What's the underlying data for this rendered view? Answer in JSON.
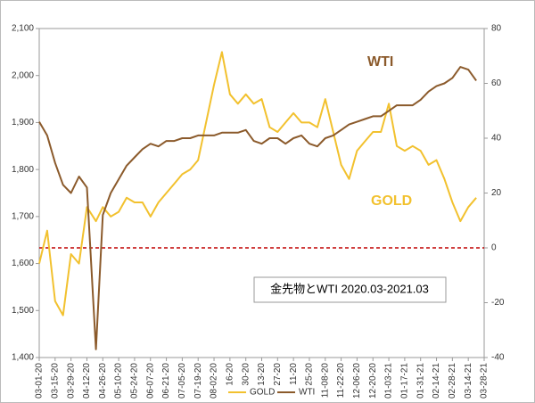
{
  "chart_data": {
    "type": "line",
    "annotations": [
      "WTI",
      "GOLD",
      "金先物とWTI 2020.03-2021.03"
    ],
    "x": [
      "03-01-20",
      "03-08-20",
      "03-15-20",
      "03-22-20",
      "03-29-20",
      "04-05-20",
      "04-12-20",
      "04-20-20",
      "04-26-20",
      "05-03-20",
      "05-10-20",
      "05-17-20",
      "05-24-20",
      "05-31-20",
      "06-07-20",
      "06-14-20",
      "06-21-20",
      "06-28-20",
      "07-05-20",
      "07-12-20",
      "07-19-20",
      "07-26-20",
      "08-02-20",
      "08-09-20",
      "08-16-20",
      "08-23-20",
      "08-30-20",
      "09-06-20",
      "09-13-20",
      "09-20-20",
      "09-27-20",
      "10-04-20",
      "10-11-20",
      "10-18-20",
      "10-25-20",
      "11-01-20",
      "11-08-20",
      "11-15-20",
      "11-22-20",
      "11-29-20",
      "12-06-20",
      "12-13-20",
      "12-20-20",
      "12-27-20",
      "01-03-21",
      "01-10-21",
      "01-17-21",
      "01-24-21",
      "01-31-21",
      "02-07-21",
      "02-14-21",
      "02-21-21",
      "02-28-21",
      "03-07-21",
      "03-14-21",
      "03-21-21"
    ],
    "series": [
      {
        "name": "GOLD",
        "color": "#f2c12e",
        "values": [
          1600,
          1670,
          1520,
          1490,
          1620,
          1600,
          1720,
          1690,
          1720,
          1700,
          1710,
          1740,
          1730,
          1730,
          1700,
          1730,
          1750,
          1770,
          1790,
          1800,
          1820,
          1900,
          1980,
          2050,
          1960,
          1940,
          1960,
          1940,
          1950,
          1890,
          1880,
          1900,
          1920,
          1900,
          1900,
          1890,
          1950,
          1880,
          1810,
          1780,
          1840,
          1860,
          1880,
          1880,
          1940,
          1850,
          1840,
          1850,
          1840,
          1810,
          1820,
          1780,
          1730,
          1690,
          1720,
          1740
        ]
      },
      {
        "name": "WTI",
        "color": "#8b5a2b",
        "axis": "y2",
        "values": [
          46,
          41,
          31,
          23,
          20,
          26,
          22,
          -37,
          12,
          20,
          25,
          30,
          33,
          36,
          38,
          37,
          39,
          39,
          40,
          40,
          41,
          41,
          41,
          42,
          42,
          42,
          43,
          39,
          38,
          40,
          40,
          38,
          40,
          41,
          38,
          37,
          40,
          41,
          43,
          45,
          46,
          47,
          48,
          48,
          50,
          52,
          52,
          52,
          54,
          57,
          59,
          60,
          62,
          66,
          65,
          61
        ]
      }
    ],
    "xlim": [
      "03-01-20",
      "03-28-21"
    ],
    "xticks": [
      "03-01-20",
      "03-15-20",
      "03-29-20",
      "04-12-20",
      "04-26-20",
      "05-10-20",
      "05-24-20",
      "06-07-20",
      "06-21-20",
      "07-05-20",
      "07-19-20",
      "08-02-20",
      "08-16-20",
      "08-30-20",
      "09-13-20",
      "09-27-20",
      "10-11-20",
      "10-25-20",
      "11-08-20",
      "11-22-20",
      "12-06-20",
      "12-20-20",
      "01-03-21",
      "01-17-21",
      "01-31-21",
      "02-14-21",
      "02-28-21",
      "03-14-21",
      "03-28-21"
    ],
    "ylim": [
      1400,
      2100
    ],
    "yticks": [
      {
        "value": 1400,
        "label": "1,400"
      },
      {
        "value": 1500,
        "label": "1,500"
      },
      {
        "value": 1600,
        "label": "1,600"
      },
      {
        "value": 1700,
        "label": "1,700"
      },
      {
        "value": 1800,
        "label": "1,800"
      },
      {
        "value": 1900,
        "label": "1,900"
      },
      {
        "value": 2000,
        "label": "2,000"
      },
      {
        "value": 2100,
        "label": "2,100"
      }
    ],
    "y2lim": [
      -40,
      80
    ],
    "y2ticks": [
      -40,
      -20,
      0,
      20,
      40,
      60,
      80
    ],
    "reference_line": {
      "axis": "y2",
      "value": 0,
      "color": "#c00000"
    },
    "legend": "bottom"
  }
}
